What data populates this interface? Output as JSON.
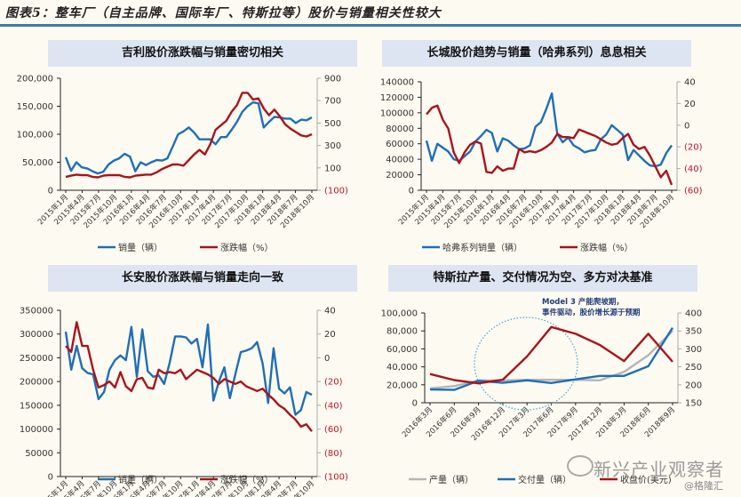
{
  "figure": {
    "title": "图表5：整车厂（自主品牌、国际车厂、特斯拉等）股价与销量相关性较大",
    "watermark": "新兴产业观察者",
    "watermark_sub": "@格隆汇"
  },
  "chart_data": [
    {
      "type": "line",
      "title": "吉利股价涨跌幅与销量密切相关",
      "x_tick_labels": [
        "2015年1月",
        "2015年4月",
        "2015年7月",
        "2015年10月",
        "2016年1月",
        "2016年4月",
        "2016年7月",
        "2016年10月",
        "2017年1月",
        "2017年4月",
        "2017年7月",
        "2017年10月",
        "2018年1月",
        "2018年4月",
        "2018年7月",
        "2018年10月"
      ],
      "y_left": {
        "min": 0,
        "max": 200000,
        "ticks": [
          "0",
          "50,000",
          "100,000",
          "150,000",
          "200,000"
        ]
      },
      "y_right": {
        "min": -100,
        "max": 900,
        "ticks": [
          "(100)",
          "100",
          "300",
          "500",
          "700",
          "900"
        ]
      },
      "series": [
        {
          "name": "销量（辆）",
          "axis": "left",
          "color": "#1f6fb5",
          "values": [
            59000,
            35000,
            50000,
            41000,
            39000,
            34000,
            30000,
            33000,
            46000,
            53000,
            57000,
            65000,
            60000,
            34000,
            50000,
            45000,
            50000,
            54000,
            53000,
            57000,
            78000,
            100000,
            105000,
            112000,
            103000,
            91000,
            91000,
            91000,
            82000,
            95000,
            95000,
            108000,
            122000,
            140000,
            150000,
            157000,
            155000,
            112000,
            122000,
            131000,
            130000,
            128000,
            128000,
            120000,
            126000,
            125000,
            130000
          ]
        },
        {
          "name": "涨跌幅（%）",
          "axis": "right",
          "color": "#a8141c",
          "values": [
            20,
            30,
            40,
            35,
            35,
            20,
            15,
            30,
            35,
            35,
            35,
            20,
            15,
            30,
            35,
            40,
            40,
            60,
            90,
            110,
            130,
            130,
            120,
            170,
            220,
            260,
            220,
            310,
            440,
            480,
            520,
            600,
            660,
            770,
            770,
            710,
            720,
            630,
            570,
            620,
            560,
            490,
            450,
            420,
            390,
            380,
            400
          ]
        }
      ],
      "legend": [
        "销量（辆）",
        "涨跌幅（%）"
      ],
      "legend_position": "bottom"
    },
    {
      "type": "line",
      "title": "长城股价趋势与销量（哈弗系列）息息相关",
      "x_tick_labels": [
        "2015年1月",
        "2015年4月",
        "2015年7月",
        "2015年10月",
        "2016年1月",
        "2016年4月",
        "2016年7月",
        "2016年10月",
        "2017年1月",
        "2017年4月",
        "2017年7月",
        "2017年10月",
        "2018年1月",
        "2018年4月",
        "2018年7月",
        "2018年10月"
      ],
      "y_left": {
        "min": 0,
        "max": 140000,
        "ticks": [
          "0",
          "20000",
          "40000",
          "60000",
          "80000",
          "100000",
          "120000",
          "140000"
        ]
      },
      "y_right": {
        "min": -60,
        "max": 40,
        "ticks": [
          "(60)",
          "(40)",
          "(20)",
          "0",
          "20",
          "40"
        ]
      },
      "series": [
        {
          "name": "哈弗系列销量（辆）",
          "axis": "left",
          "color": "#1f6fb5",
          "values": [
            64000,
            38000,
            60000,
            55000,
            50000,
            40000,
            38000,
            44000,
            50000,
            63000,
            70000,
            78000,
            74000,
            50000,
            67000,
            64000,
            58000,
            53000,
            54000,
            58000,
            82000,
            88000,
            105000,
            125000,
            73000,
            62000,
            68000,
            58000,
            54000,
            49000,
            51000,
            52000,
            66000,
            72000,
            84000,
            78000,
            72000,
            39000,
            52000,
            45000,
            38000,
            32000,
            31000,
            33000,
            48000,
            58000
          ]
        },
        {
          "name": "涨跌幅（%）",
          "axis": "right",
          "color": "#a8141c",
          "values": [
            10,
            16,
            18,
            5,
            -3,
            -25,
            -35,
            -25,
            -18,
            -15,
            -17,
            -43,
            -44,
            -38,
            -42,
            -40,
            -40,
            -22,
            -25,
            -24,
            -25,
            -23,
            -20,
            -16,
            -8,
            -11,
            -11,
            -12,
            -4,
            -6,
            -8,
            -10,
            -13,
            -16,
            -18,
            -17,
            -12,
            -8,
            -18,
            -22,
            -20,
            -28,
            -38,
            -48,
            -42,
            -55
          ]
        }
      ],
      "legend": [
        "哈弗系列销量（辆）",
        "涨跌幅（%）"
      ],
      "legend_position": "bottom"
    },
    {
      "type": "line",
      "title": "长安股价涨跌幅与销量走向一致",
      "x_tick_labels": [
        "2015年1月",
        "2015年4月",
        "2015年7月",
        "2015年10月",
        "2016年1月",
        "2016年4月",
        "2016年7月",
        "2016年10月",
        "2017年1月",
        "2017年4月",
        "2017年7月",
        "2017年10月",
        "2018年1月",
        "2018年4月",
        "2018年7月",
        "2018年10月"
      ],
      "y_left": {
        "min": 0,
        "max": 350000,
        "ticks": [
          "0",
          "50000",
          "100000",
          "150000",
          "200000",
          "250000",
          "300000",
          "350000"
        ]
      },
      "y_right": {
        "min": -100,
        "max": 40,
        "ticks": [
          "(100)",
          "(80)",
          "(60)",
          "(40)",
          "(20)",
          "0",
          "20",
          "40"
        ]
      },
      "series": [
        {
          "name": "销量（辆）",
          "axis": "left",
          "color": "#1f6fb5",
          "values": [
            305000,
            225000,
            275000,
            228000,
            218000,
            215000,
            163000,
            178000,
            225000,
            245000,
            255000,
            245000,
            315000,
            210000,
            310000,
            222000,
            210000,
            213000,
            195000,
            240000,
            295000,
            295000,
            293000,
            280000,
            290000,
            230000,
            320000,
            160000,
            200000,
            230000,
            165000,
            215000,
            262000,
            265000,
            270000,
            283000,
            238000,
            155000,
            270000,
            185000,
            175000,
            188000,
            130000,
            140000,
            178000,
            172000
          ]
        },
        {
          "name": "涨跌幅（%）",
          "axis": "right",
          "color": "#a8141c",
          "values": [
            10,
            5,
            30,
            10,
            10,
            -10,
            -25,
            -23,
            -20,
            -25,
            -12,
            -24,
            -28,
            -18,
            -17,
            -25,
            -26,
            -10,
            -13,
            -12,
            -13,
            -10,
            -18,
            -14,
            -10,
            -12,
            -14,
            -17,
            -22,
            -18,
            -20,
            -22,
            -20,
            -24,
            -26,
            -28,
            -26,
            -31,
            -35,
            -40,
            -43,
            -48,
            -52,
            -58,
            -56,
            -62
          ]
        }
      ],
      "legend": [
        "销量（辆）",
        "涨跌幅（%）"
      ],
      "legend_position": "bottom"
    },
    {
      "type": "line",
      "title": "特斯拉产量、交付情况为空、多方对决基准",
      "x_tick_labels": [
        "2016年3月",
        "2016年6月",
        "2016年9月",
        "2016年12月",
        "2017年3月",
        "2017年6月",
        "2017年9月",
        "2017年12月",
        "2018年3月",
        "2018年6月",
        "2018年9月"
      ],
      "y_left": {
        "min": 0,
        "max": 100000,
        "ticks": [
          "0",
          "20,000",
          "40,000",
          "60,000",
          "80,000",
          "100,000"
        ]
      },
      "y_right": {
        "min": 150,
        "max": 400,
        "ticks": [
          "150",
          "200",
          "250",
          "300",
          "350",
          "400"
        ]
      },
      "series": [
        {
          "name": "产量（辆）",
          "axis": "left",
          "color": "#b5b5b5",
          "values": [
            16000,
            18500,
            25000,
            24900,
            25500,
            25500,
            25500,
            25000,
            34500,
            53000,
            80000
          ]
        },
        {
          "name": "交付量（辆）",
          "axis": "left",
          "color": "#1f6fb5",
          "values": [
            14800,
            14400,
            24500,
            22200,
            25000,
            22000,
            26000,
            29900,
            29900,
            40700,
            83500
          ]
        },
        {
          "name": "收盘价(美元)",
          "axis": "right",
          "color": "#a8141c",
          "values": [
            230,
            213,
            204,
            214,
            279,
            361,
            342,
            311,
            266,
            342,
            264
          ]
        }
      ],
      "annotation": "Model 3 产能爬坡期，事件驱动，股价增长源于预期",
      "legend": [
        "产量（辆）",
        "交付量（辆）",
        "收盘价(美元)"
      ],
      "legend_position": "bottom"
    }
  ]
}
